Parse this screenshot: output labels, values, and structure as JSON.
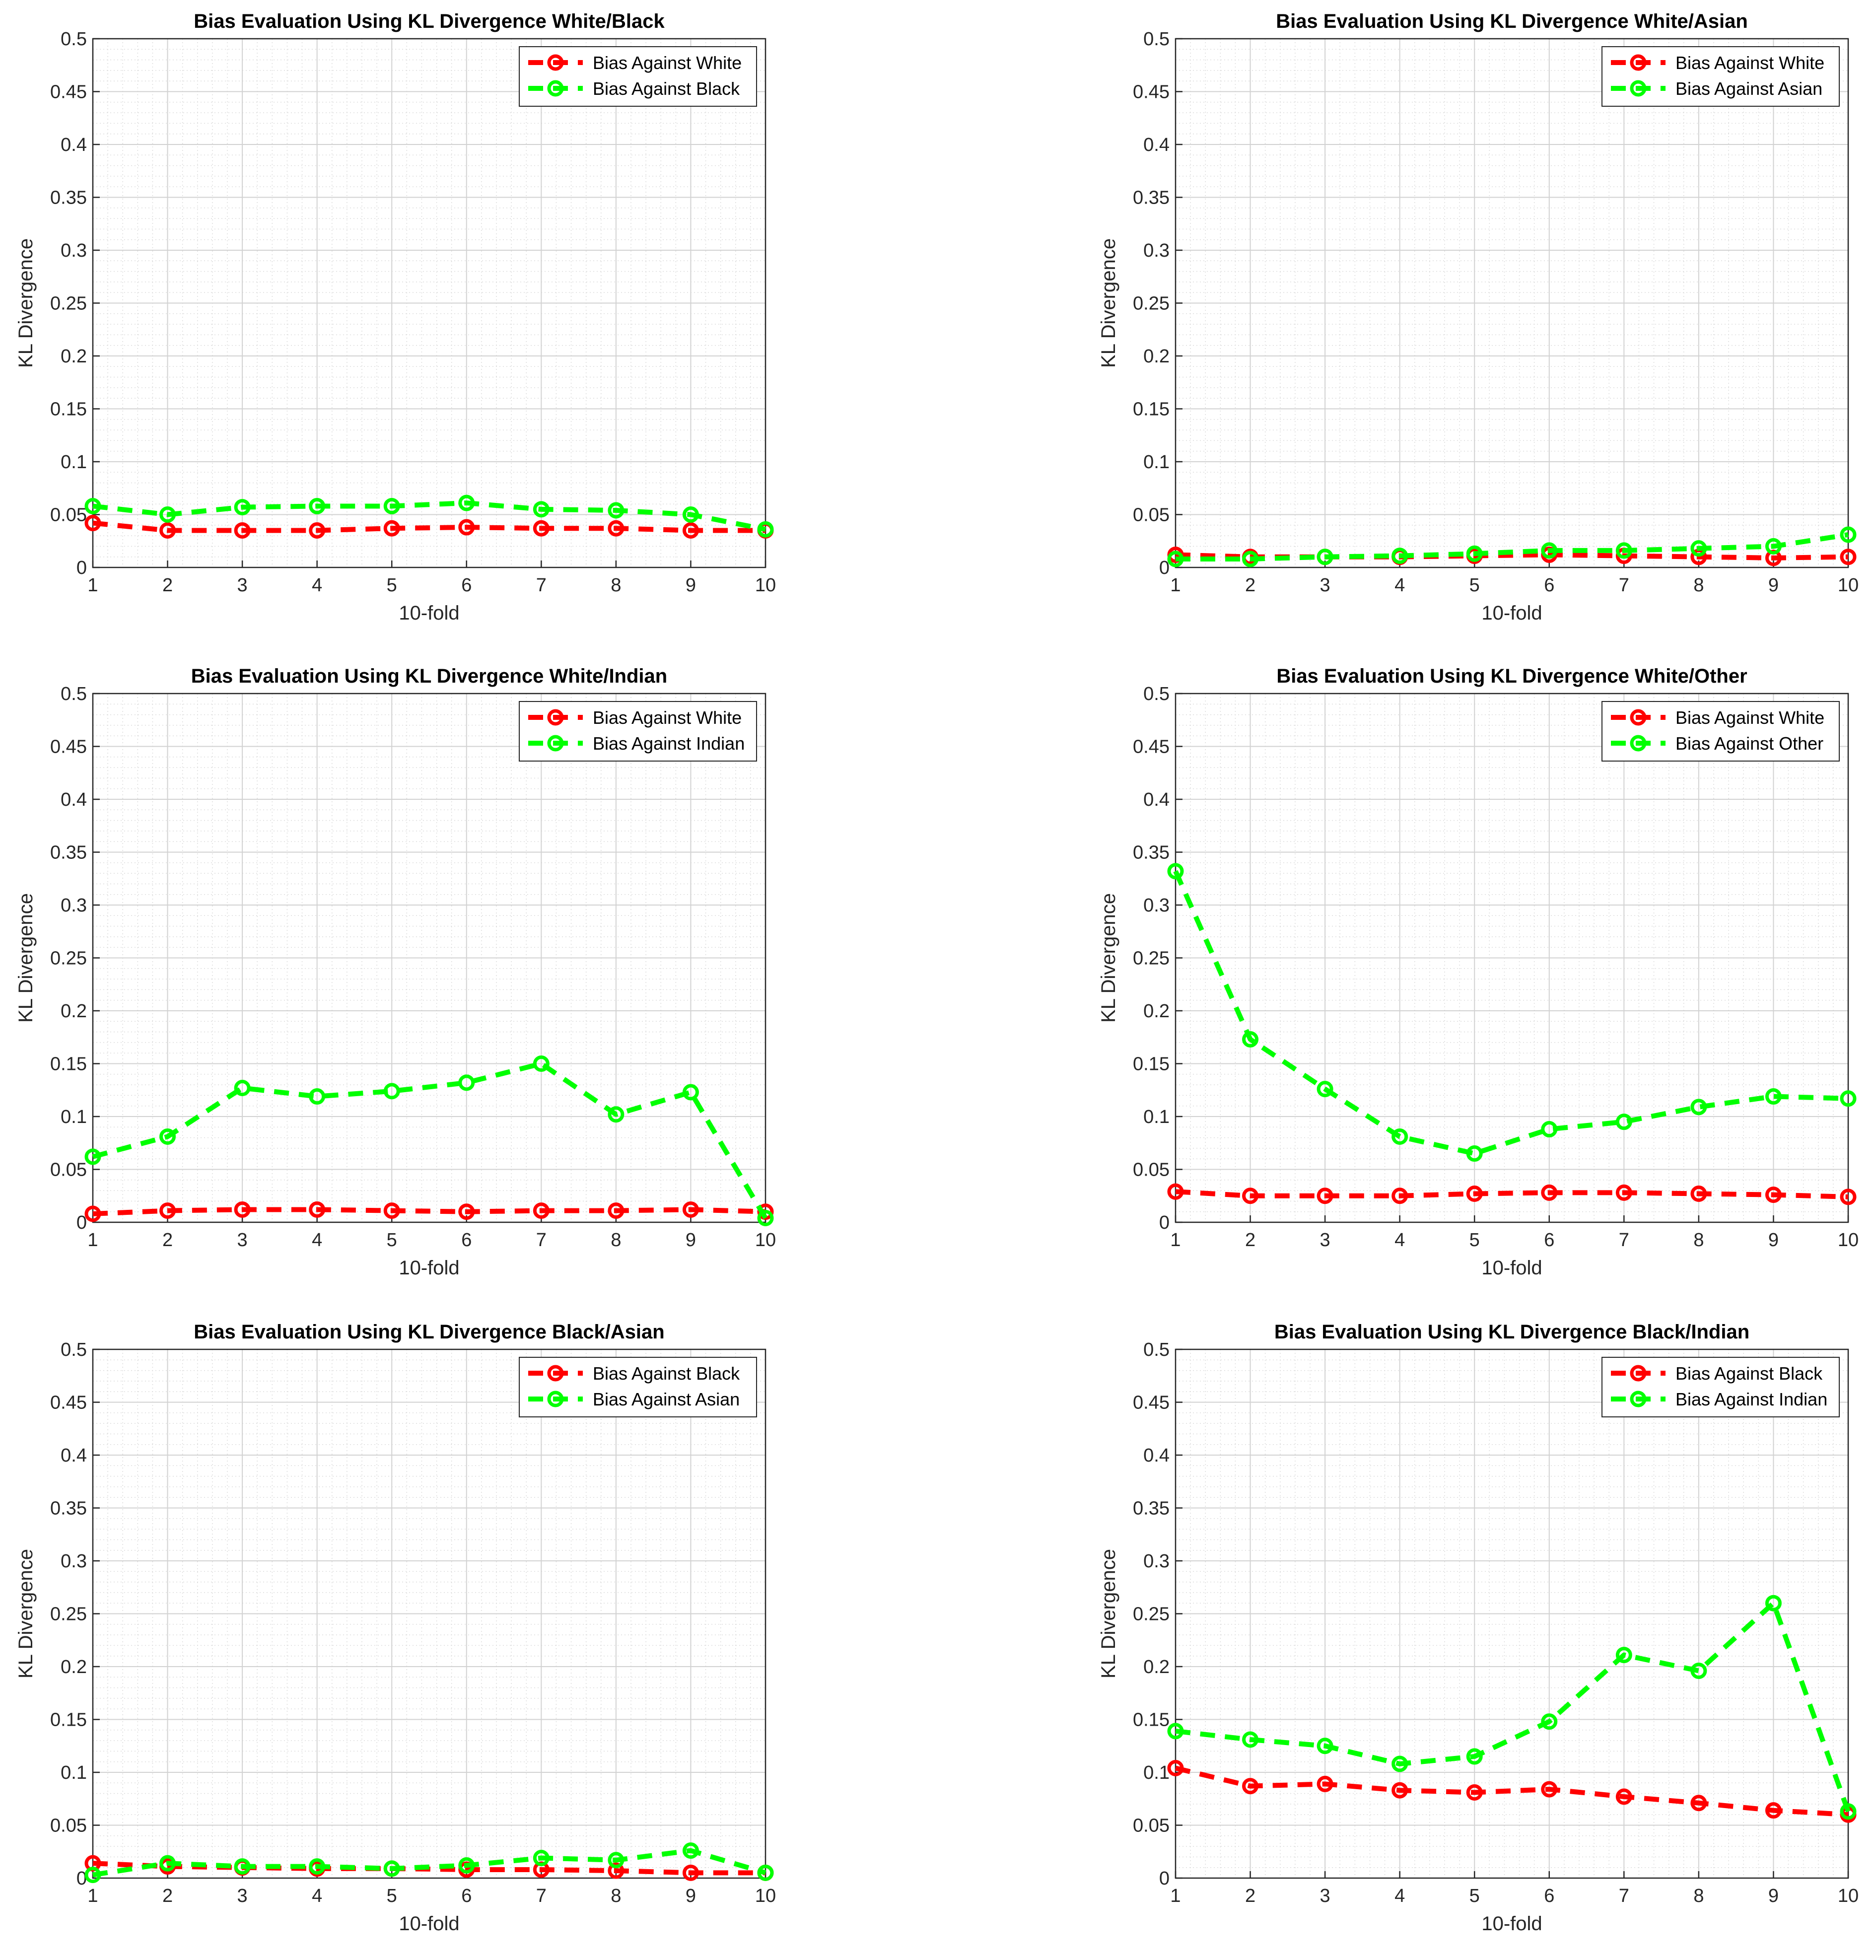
{
  "chart_data": [
    {
      "type": "line",
      "title": "Bias Evaluation Using KL Divergence White/Black",
      "xlabel": "10-fold",
      "ylabel": "KL Divergence",
      "x": [
        1,
        2,
        3,
        4,
        5,
        6,
        7,
        8,
        9,
        10
      ],
      "xlim": [
        1,
        10
      ],
      "ylim": [
        0,
        0.5
      ],
      "yticks": [
        "0",
        "0.05",
        "0.1",
        "0.15",
        "0.2",
        "0.25",
        "0.3",
        "0.35",
        "0.4",
        "0.45",
        "0.5"
      ],
      "xticks": [
        "1",
        "2",
        "3",
        "4",
        "5",
        "6",
        "7",
        "8",
        "9",
        "10"
      ],
      "grid": true,
      "legend_position": "top-right",
      "series": [
        {
          "name": "Bias Against White",
          "color": "#ff0000",
          "values": [
            0.042,
            0.035,
            0.035,
            0.035,
            0.037,
            0.038,
            0.037,
            0.037,
            0.035,
            0.035
          ]
        },
        {
          "name": "Bias Against Black",
          "color": "#00ff00",
          "values": [
            0.058,
            0.05,
            0.057,
            0.058,
            0.058,
            0.061,
            0.055,
            0.054,
            0.05,
            0.036
          ]
        }
      ]
    },
    {
      "type": "line",
      "title": "Bias Evaluation Using KL Divergence White/Asian",
      "xlabel": "10-fold",
      "ylabel": "KL Divergence",
      "x": [
        1,
        2,
        3,
        4,
        5,
        6,
        7,
        8,
        9,
        10
      ],
      "xlim": [
        1,
        10
      ],
      "ylim": [
        0,
        0.5
      ],
      "yticks": [
        "0",
        "0.05",
        "0.1",
        "0.15",
        "0.2",
        "0.25",
        "0.3",
        "0.35",
        "0.4",
        "0.45",
        "0.5"
      ],
      "xticks": [
        "1",
        "2",
        "3",
        "4",
        "5",
        "6",
        "7",
        "8",
        "9",
        "10"
      ],
      "grid": true,
      "legend_position": "top-right",
      "series": [
        {
          "name": "Bias Against White",
          "color": "#ff0000",
          "values": [
            0.012,
            0.01,
            0.01,
            0.01,
            0.011,
            0.012,
            0.011,
            0.01,
            0.009,
            0.01
          ]
        },
        {
          "name": "Bias Against Asian",
          "color": "#00ff00",
          "values": [
            0.008,
            0.008,
            0.01,
            0.011,
            0.013,
            0.016,
            0.016,
            0.018,
            0.02,
            0.031
          ]
        }
      ]
    },
    {
      "type": "line",
      "title": "Bias Evaluation Using KL Divergence White/Indian",
      "xlabel": "10-fold",
      "ylabel": "KL Divergence",
      "x": [
        1,
        2,
        3,
        4,
        5,
        6,
        7,
        8,
        9,
        10
      ],
      "xlim": [
        1,
        10
      ],
      "ylim": [
        0,
        0.5
      ],
      "yticks": [
        "0",
        "0.05",
        "0.1",
        "0.15",
        "0.2",
        "0.25",
        "0.3",
        "0.35",
        "0.4",
        "0.45",
        "0.5"
      ],
      "xticks": [
        "1",
        "2",
        "3",
        "4",
        "5",
        "6",
        "7",
        "8",
        "9",
        "10"
      ],
      "grid": true,
      "legend_position": "top-right",
      "series": [
        {
          "name": "Bias Against White",
          "color": "#ff0000",
          "values": [
            0.008,
            0.011,
            0.012,
            0.012,
            0.011,
            0.01,
            0.011,
            0.011,
            0.012,
            0.01
          ]
        },
        {
          "name": "Bias Against Indian",
          "color": "#00ff00",
          "values": [
            0.062,
            0.081,
            0.127,
            0.119,
            0.124,
            0.132,
            0.15,
            0.102,
            0.123,
            0.004
          ]
        }
      ]
    },
    {
      "type": "line",
      "title": "Bias Evaluation Using KL Divergence White/Other",
      "xlabel": "10-fold",
      "ylabel": "KL Divergence",
      "x": [
        1,
        2,
        3,
        4,
        5,
        6,
        7,
        8,
        9,
        10
      ],
      "xlim": [
        1,
        10
      ],
      "ylim": [
        0,
        0.5
      ],
      "yticks": [
        "0",
        "0.05",
        "0.1",
        "0.15",
        "0.2",
        "0.25",
        "0.3",
        "0.35",
        "0.4",
        "0.45",
        "0.5"
      ],
      "xticks": [
        "1",
        "2",
        "3",
        "4",
        "5",
        "6",
        "7",
        "8",
        "9",
        "10"
      ],
      "grid": true,
      "legend_position": "top-right",
      "series": [
        {
          "name": "Bias Against White",
          "color": "#ff0000",
          "values": [
            0.029,
            0.025,
            0.025,
            0.025,
            0.027,
            0.028,
            0.028,
            0.027,
            0.026,
            0.024
          ]
        },
        {
          "name": "Bias Against Other",
          "color": "#00ff00",
          "values": [
            0.332,
            0.173,
            0.126,
            0.081,
            0.065,
            0.088,
            0.095,
            0.109,
            0.119,
            0.117
          ]
        }
      ]
    },
    {
      "type": "line",
      "title": "Bias Evaluation Using KL Divergence Black/Asian",
      "xlabel": "10-fold",
      "ylabel": "KL Divergence",
      "x": [
        1,
        2,
        3,
        4,
        5,
        6,
        7,
        8,
        9,
        10
      ],
      "xlim": [
        1,
        10
      ],
      "ylim": [
        0,
        0.5
      ],
      "yticks": [
        "0",
        "0.05",
        "0.1",
        "0.15",
        "0.2",
        "0.25",
        "0.3",
        "0.35",
        "0.4",
        "0.45",
        "0.5"
      ],
      "xticks": [
        "1",
        "2",
        "3",
        "4",
        "5",
        "6",
        "7",
        "8",
        "9",
        "10"
      ],
      "grid": true,
      "legend_position": "top-right",
      "series": [
        {
          "name": "Bias Against Black",
          "color": "#ff0000",
          "values": [
            0.014,
            0.011,
            0.01,
            0.009,
            0.009,
            0.008,
            0.008,
            0.007,
            0.005,
            0.005
          ]
        },
        {
          "name": "Bias Against Asian",
          "color": "#00ff00",
          "values": [
            0.003,
            0.014,
            0.011,
            0.011,
            0.009,
            0.012,
            0.019,
            0.017,
            0.026,
            0.005
          ]
        }
      ]
    },
    {
      "type": "line",
      "title": "Bias Evaluation Using KL Divergence Black/Indian",
      "xlabel": "10-fold",
      "ylabel": "KL Divergence",
      "x": [
        1,
        2,
        3,
        4,
        5,
        6,
        7,
        8,
        9,
        10
      ],
      "xlim": [
        1,
        10
      ],
      "ylim": [
        0,
        0.5
      ],
      "yticks": [
        "0",
        "0.05",
        "0.1",
        "0.15",
        "0.2",
        "0.25",
        "0.3",
        "0.35",
        "0.4",
        "0.45",
        "0.5"
      ],
      "xticks": [
        "1",
        "2",
        "3",
        "4",
        "5",
        "6",
        "7",
        "8",
        "9",
        "10"
      ],
      "grid": true,
      "legend_position": "top-right",
      "series": [
        {
          "name": "Bias Against Black",
          "color": "#ff0000",
          "values": [
            0.104,
            0.087,
            0.089,
            0.083,
            0.081,
            0.084,
            0.077,
            0.071,
            0.064,
            0.06
          ]
        },
        {
          "name": "Bias Against Indian",
          "color": "#00ff00",
          "values": [
            0.139,
            0.131,
            0.125,
            0.108,
            0.115,
            0.148,
            0.211,
            0.196,
            0.26,
            0.063
          ]
        }
      ]
    }
  ]
}
